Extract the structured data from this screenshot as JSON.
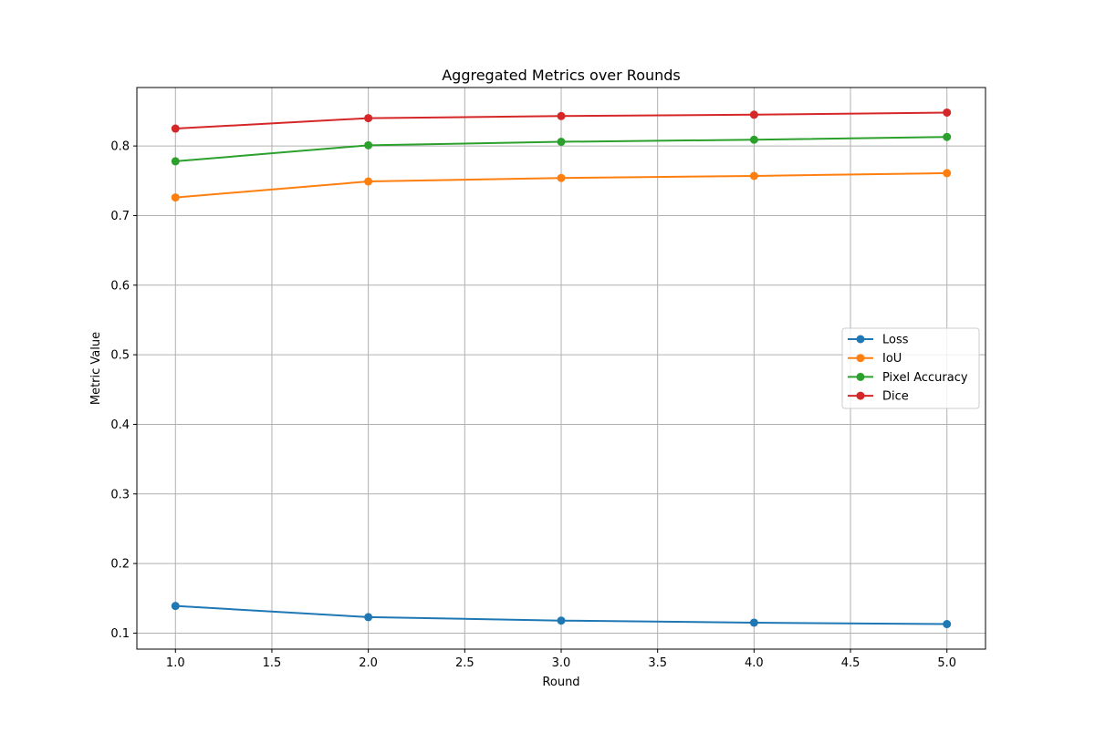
{
  "chart_data": {
    "type": "line",
    "title": "Aggregated Metrics over Rounds",
    "xlabel": "Round",
    "ylabel": "Metric Value",
    "x": [
      1,
      2,
      3,
      4,
      5
    ],
    "xlim": [
      0.8,
      5.2
    ],
    "ylim": [
      0.077,
      0.884
    ],
    "xticks": [
      "1.0",
      "1.5",
      "2.0",
      "2.5",
      "3.0",
      "3.5",
      "4.0",
      "4.5",
      "5.0"
    ],
    "yticks": [
      "0.1",
      "0.2",
      "0.3",
      "0.4",
      "0.5",
      "0.6",
      "0.7",
      "0.8"
    ],
    "grid": true,
    "legend_position": "center-right",
    "series": [
      {
        "name": "Loss",
        "color": "#1f77b4",
        "values": [
          0.139,
          0.123,
          0.118,
          0.115,
          0.113
        ]
      },
      {
        "name": "IoU",
        "color": "#ff7f0e",
        "values": [
          0.726,
          0.749,
          0.754,
          0.757,
          0.761
        ]
      },
      {
        "name": "Pixel Accuracy",
        "color": "#2ca02c",
        "values": [
          0.778,
          0.801,
          0.806,
          0.809,
          0.813
        ]
      },
      {
        "name": "Dice",
        "color": "#d62728",
        "values": [
          0.825,
          0.84,
          0.843,
          0.845,
          0.848
        ]
      }
    ]
  }
}
